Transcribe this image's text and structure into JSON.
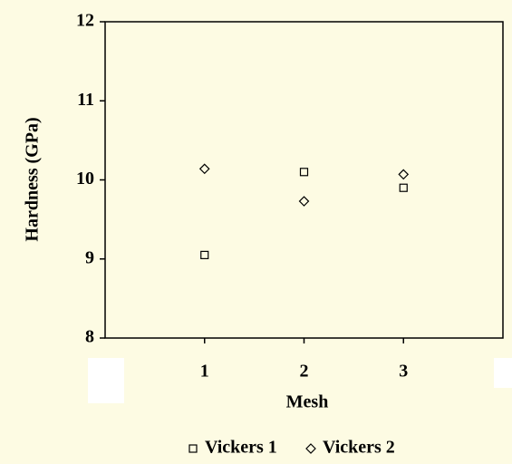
{
  "chart_data": {
    "type": "scatter",
    "x_label": "Mesh",
    "y_label": "Hardness (GPa)",
    "xlim": [
      0,
      4
    ],
    "xticks": [
      1,
      2,
      3
    ],
    "ylim": [
      8,
      12
    ],
    "yticks": [
      8,
      9,
      10,
      11,
      12
    ],
    "series": [
      {
        "name": "Vickers 1",
        "marker": "square",
        "color": "#000000",
        "x": [
          1,
          2,
          3
        ],
        "values": [
          9.05,
          10.1,
          9.9
        ]
      },
      {
        "name": "Vickers 2",
        "marker": "diamond",
        "color": "#000000",
        "x": [
          1,
          2,
          3
        ],
        "values": [
          10.14,
          9.73,
          10.07
        ]
      }
    ],
    "legend": "bottom"
  }
}
